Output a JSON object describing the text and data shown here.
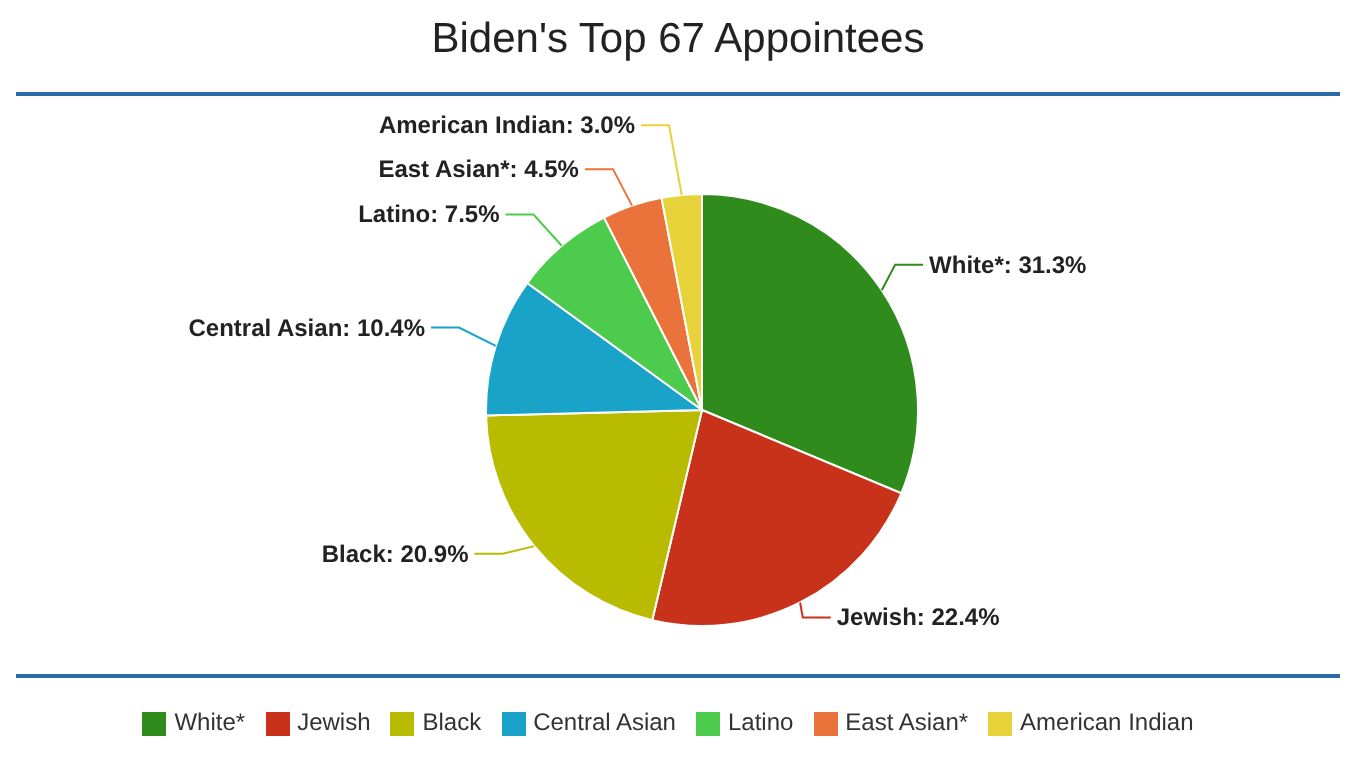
{
  "chart_data": {
    "type": "pie",
    "title": "Biden's Top 67 Appointees",
    "categories": [
      "White*",
      "Jewish",
      "Black",
      "Central Asian",
      "Latino",
      "East Asian*",
      "American Indian"
    ],
    "values": [
      31.3,
      22.4,
      20.9,
      10.4,
      7.5,
      4.5,
      3.0
    ],
    "value_labels": [
      "White*: 31.3%",
      "Jewish: 22.4%",
      "Black: 20.9%",
      "Central Asian: 10.4%",
      "Latino: 7.5%",
      "East Asian*: 4.5%",
      "American Indian: 3.0%"
    ],
    "colors": [
      "#2f8c1c",
      "#c9321a",
      "#b9bb00",
      "#1aa3c9",
      "#4ccb4c",
      "#e9733a",
      "#e7d23a"
    ],
    "legend": "bottom"
  }
}
